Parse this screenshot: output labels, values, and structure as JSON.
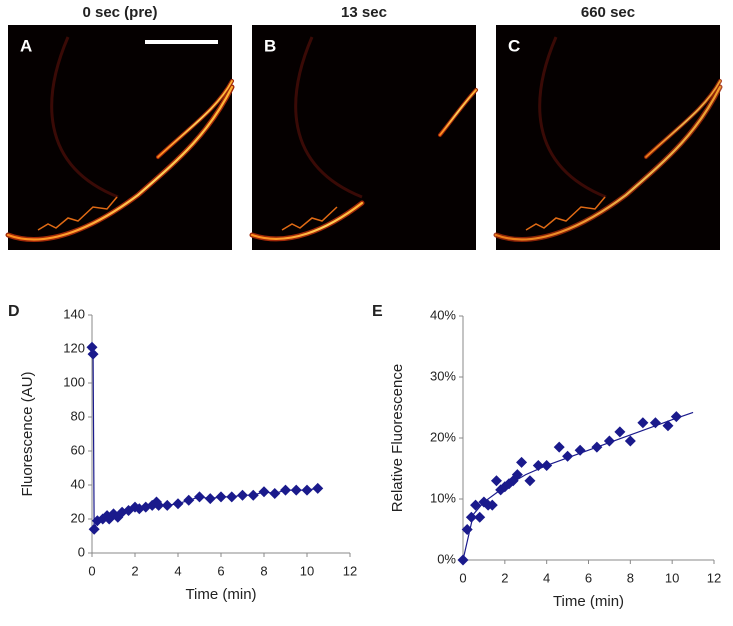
{
  "images": [
    {
      "title": "0 sec (pre)",
      "label": "A"
    },
    {
      "title": "13 sec",
      "label": "B"
    },
    {
      "title": "660 sec",
      "label": "C"
    }
  ],
  "chart_data": [
    {
      "type": "scatter",
      "panel": "D",
      "xlabel": "Time (min)",
      "ylabel": "Fluorescence  (AU)",
      "xlim": [
        0,
        12
      ],
      "xticks": [
        0,
        2,
        4,
        6,
        8,
        10,
        12
      ],
      "ylim": [
        0,
        140
      ],
      "yticks": [
        0,
        20,
        40,
        60,
        80,
        100,
        120,
        140
      ],
      "series": [
        {
          "color": "#1a1a8c",
          "marker": "diamond",
          "line": true,
          "x": [
            0,
            0.05,
            0.1,
            0.25,
            0.5,
            0.7,
            0.8,
            1,
            1.2,
            1.4,
            1.7,
            2,
            2.2,
            2.5,
            2.8,
            3,
            3.1,
            3.5,
            4,
            4.5,
            5,
            5.5,
            6,
            6.5,
            7,
            7.5,
            8,
            8.5,
            9,
            9.5,
            10,
            10.5
          ],
          "values": [
            121,
            117,
            14,
            19,
            20,
            22,
            20,
            23,
            21,
            24,
            25,
            27,
            26,
            27,
            28,
            30,
            28,
            28,
            29,
            31,
            33,
            32,
            33,
            33,
            34,
            34,
            36,
            35,
            37,
            37,
            37,
            38
          ]
        }
      ]
    },
    {
      "type": "scatter",
      "panel": "E",
      "xlabel": "Time (min)",
      "ylabel": "Relative Fluorescence",
      "xlim": [
        0,
        12
      ],
      "xticks": [
        0,
        2,
        4,
        6,
        8,
        10,
        12
      ],
      "ylim": [
        0,
        40
      ],
      "yticks": [
        {
          "value": 0,
          "label": "0%"
        },
        {
          "value": 10,
          "label": "10%"
        },
        {
          "value": 20,
          "label": "20%"
        },
        {
          "value": 30,
          "label": "30%"
        },
        {
          "value": 40,
          "label": "40%"
        }
      ],
      "series": [
        {
          "color": "#1a1a8c",
          "marker": "diamond",
          "line": false,
          "x": [
            0,
            0.2,
            0.4,
            0.6,
            0.8,
            1,
            1.2,
            1.4,
            1.6,
            1.8,
            2,
            2.2,
            2.4,
            2.6,
            2.8,
            3.2,
            3.6,
            4,
            4.6,
            5,
            5.6,
            6.4,
            7,
            7.5,
            8,
            8.6,
            9.2,
            9.8,
            10.2
          ],
          "values": [
            0,
            5,
            7,
            9,
            7,
            9.5,
            9,
            9,
            13,
            11.5,
            12,
            12.5,
            13,
            14,
            16,
            13,
            15.5,
            15.5,
            18.5,
            17,
            18,
            18.5,
            19.5,
            21,
            19.5,
            22.5,
            22.5,
            22,
            23.5
          ]
        },
        {
          "color": "#1a1a8c",
          "marker": "none",
          "line": true,
          "x": [
            0,
            0.5,
            1,
            2,
            3,
            4,
            6,
            8,
            10,
            11
          ],
          "values": [
            0,
            7.5,
            9.5,
            12,
            14,
            15.5,
            18,
            20.5,
            23,
            24.2
          ]
        }
      ]
    }
  ]
}
